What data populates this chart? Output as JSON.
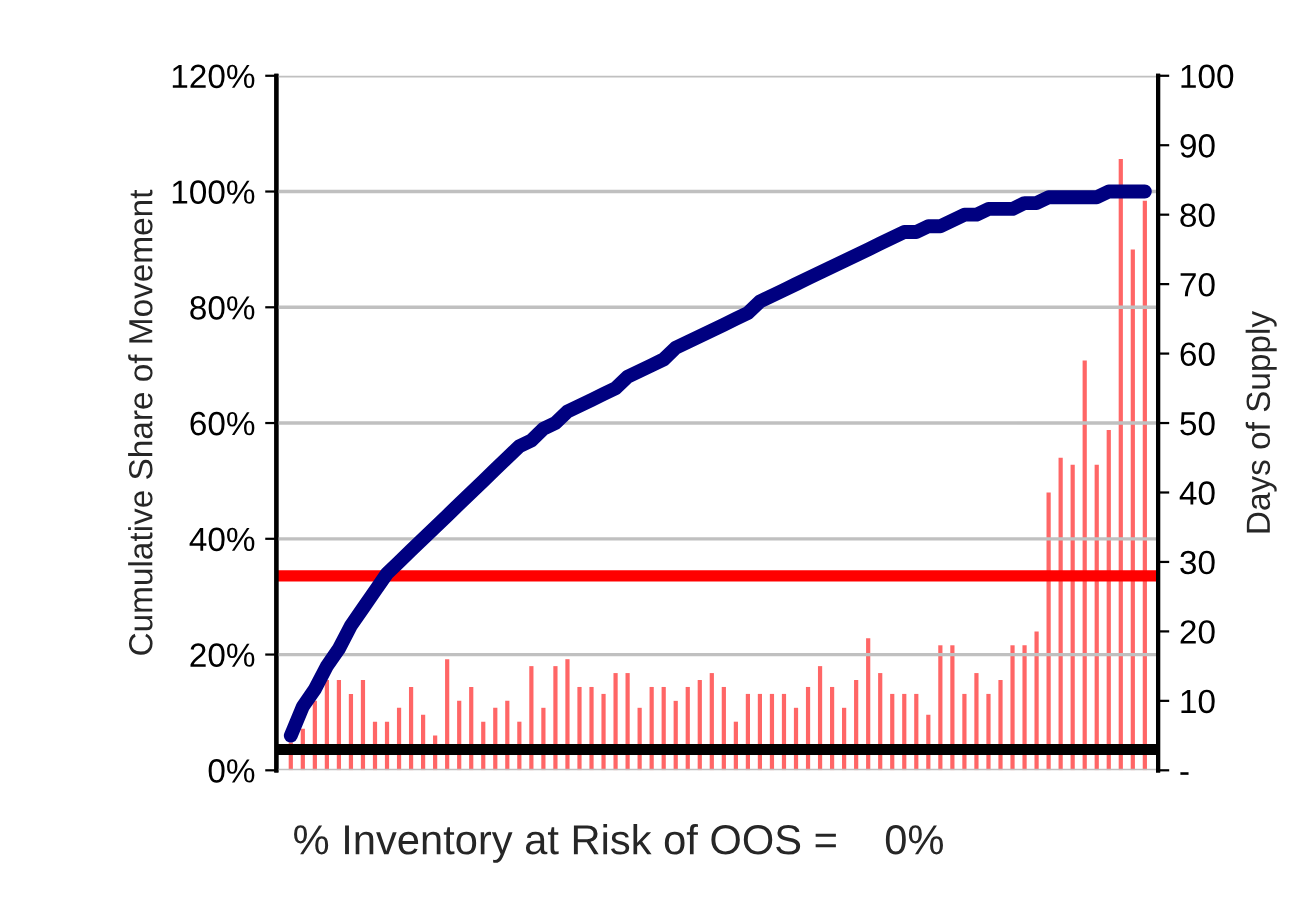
{
  "chart_data": {
    "type": "bar",
    "ylabel": "Cumulative Share of Movement",
    "y2label": "Days of Supply",
    "annotations": [
      "% Inventory at Risk of OOS =    0%"
    ],
    "categories": [
      null,
      null,
      null,
      null,
      null,
      null,
      null,
      null,
      null,
      null,
      null,
      null,
      null,
      null,
      null,
      null,
      null,
      null,
      null,
      null,
      null,
      null,
      null,
      null,
      null,
      null,
      null,
      null,
      null,
      null,
      null,
      null,
      null,
      null,
      null,
      null,
      null,
      null,
      null,
      null,
      null,
      null,
      null,
      null,
      null,
      null,
      null,
      null,
      null,
      null,
      null,
      null,
      null,
      null,
      null,
      null,
      null,
      null,
      null,
      null,
      null,
      null,
      null,
      null,
      null,
      null,
      null,
      null,
      null,
      null,
      null,
      null
    ],
    "series": [
      {
        "axis": "y2",
        "color": "#ff6666",
        "values": [
          4,
          6,
          10,
          13,
          13,
          11,
          13,
          7,
          7,
          9,
          12,
          8,
          5,
          16,
          10,
          12,
          7,
          9,
          10,
          7,
          15,
          9,
          15,
          16,
          12,
          12,
          11,
          14,
          14,
          9,
          12,
          12,
          10,
          12,
          13,
          14,
          12,
          7,
          11,
          11,
          11,
          11,
          9,
          12,
          15,
          12,
          9,
          13,
          19,
          14,
          11,
          11,
          11,
          8,
          18,
          18,
          11,
          14,
          11,
          13,
          18,
          18,
          20,
          40,
          45,
          44,
          59,
          44,
          49,
          88,
          75,
          82
        ]
      },
      {
        "type": "line",
        "color": "#000080",
        "values": [
          6,
          11,
          14,
          18,
          21,
          25,
          28,
          31,
          34,
          36,
          38,
          40,
          42,
          44,
          46,
          48,
          50,
          52,
          54,
          56,
          57,
          59,
          60,
          62,
          63,
          64,
          65,
          66,
          68,
          69,
          70,
          71,
          73,
          74,
          75,
          76,
          77,
          78,
          79,
          81,
          82,
          83,
          84,
          85,
          86,
          87,
          88,
          89,
          90,
          91,
          92,
          93,
          93,
          94,
          94,
          95,
          96,
          96,
          97,
          97,
          97,
          98,
          98,
          99,
          99,
          99,
          99,
          99,
          100,
          100,
          100,
          100
        ]
      }
    ],
    "ylim": [
      0,
      120
    ],
    "yticks": [
      {
        "value": 0,
        "label": "0%"
      },
      {
        "value": 20,
        "label": "20%"
      },
      {
        "value": 40,
        "label": "40%"
      },
      {
        "value": 60,
        "label": "60%"
      },
      {
        "value": 80,
        "label": "80%"
      },
      {
        "value": 100,
        "label": "100%"
      },
      {
        "value": 120,
        "label": "120%"
      }
    ],
    "y2lim": [
      0,
      100
    ],
    "y2ticks": [
      {
        "value": 0,
        "label": "-"
      },
      10,
      20,
      30,
      40,
      50,
      60,
      70,
      80,
      90,
      100
    ],
    "ref_lines": [
      {
        "axis": "y2",
        "value": 28,
        "color": "#ff0000"
      },
      {
        "axis": "y2",
        "value": 3,
        "color": "#000000"
      }
    ],
    "grid": "y",
    "legend": false
  }
}
